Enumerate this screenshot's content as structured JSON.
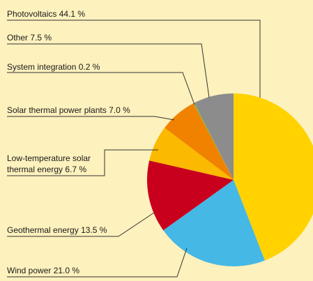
{
  "chart_data": {
    "type": "pie",
    "categories": [
      "Photovoltaics",
      "Wind power",
      "Geothermal energy",
      "Low-temperature solar thermal energy",
      "Solar thermal power plants",
      "System integration",
      "Other"
    ],
    "values": [
      44.1,
      21.0,
      13.5,
      6.7,
      7.0,
      0.2,
      7.5
    ],
    "value_labels": [
      "44.1 %",
      "21.0 %",
      "13.5 %",
      "6.7 %",
      "7.0 %",
      "0.2 %",
      "7.5 %"
    ],
    "colors": [
      "#ffd200",
      "#45b8e6",
      "#c8001e",
      "#fbb900",
      "#f08200",
      "#8cb43c",
      "#8c8c8c"
    ]
  }
}
